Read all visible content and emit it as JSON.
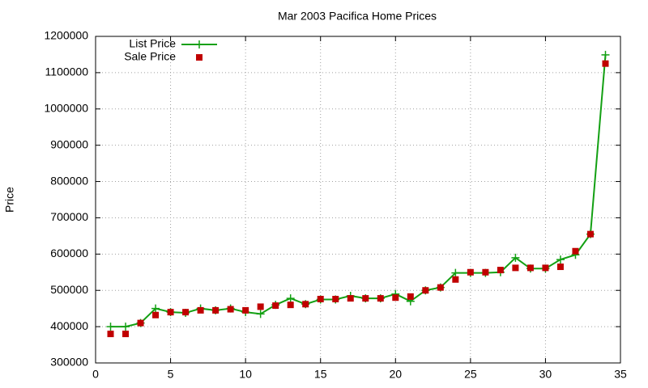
{
  "chart_data": {
    "type": "line",
    "title": "Mar 2003 Pacifica Home Prices",
    "y_label": "Price",
    "x": [
      1,
      2,
      3,
      4,
      5,
      6,
      7,
      8,
      9,
      10,
      11,
      12,
      13,
      14,
      15,
      16,
      17,
      18,
      19,
      20,
      21,
      22,
      23,
      24,
      25,
      26,
      27,
      28,
      29,
      30,
      31,
      32,
      33,
      34
    ],
    "series": [
      {
        "name": "List Price",
        "color": "#13a013",
        "style": "linespoints",
        "values": [
          400000,
          400000,
          410000,
          450000,
          440000,
          438000,
          450000,
          445000,
          450000,
          440000,
          435000,
          460000,
          478000,
          462000,
          475000,
          475000,
          485000,
          478000,
          478000,
          490000,
          470000,
          500000,
          508000,
          548000,
          548000,
          548000,
          550000,
          590000,
          560000,
          560000,
          585000,
          598000,
          655000,
          1149000
        ]
      },
      {
        "name": "Sale Price",
        "color": "#c00000",
        "style": "points",
        "values": [
          380000,
          380000,
          410000,
          432000,
          440000,
          440000,
          445000,
          445000,
          448000,
          445000,
          455000,
          458000,
          460000,
          462000,
          476000,
          476000,
          478000,
          478000,
          478000,
          480000,
          483000,
          500000,
          508000,
          530000,
          550000,
          550000,
          556000,
          562000,
          562000,
          562000,
          565000,
          608000,
          655000,
          1125000
        ]
      }
    ],
    "xlim": [
      0,
      35
    ],
    "xticks": [
      0,
      5,
      10,
      15,
      20,
      25,
      30,
      35
    ],
    "ylim": [
      300000,
      1200000
    ],
    "yticks": [
      300000,
      400000,
      500000,
      600000,
      700000,
      800000,
      900000,
      1000000,
      1100000,
      1200000
    ],
    "grid": true,
    "legend": "top-left"
  }
}
